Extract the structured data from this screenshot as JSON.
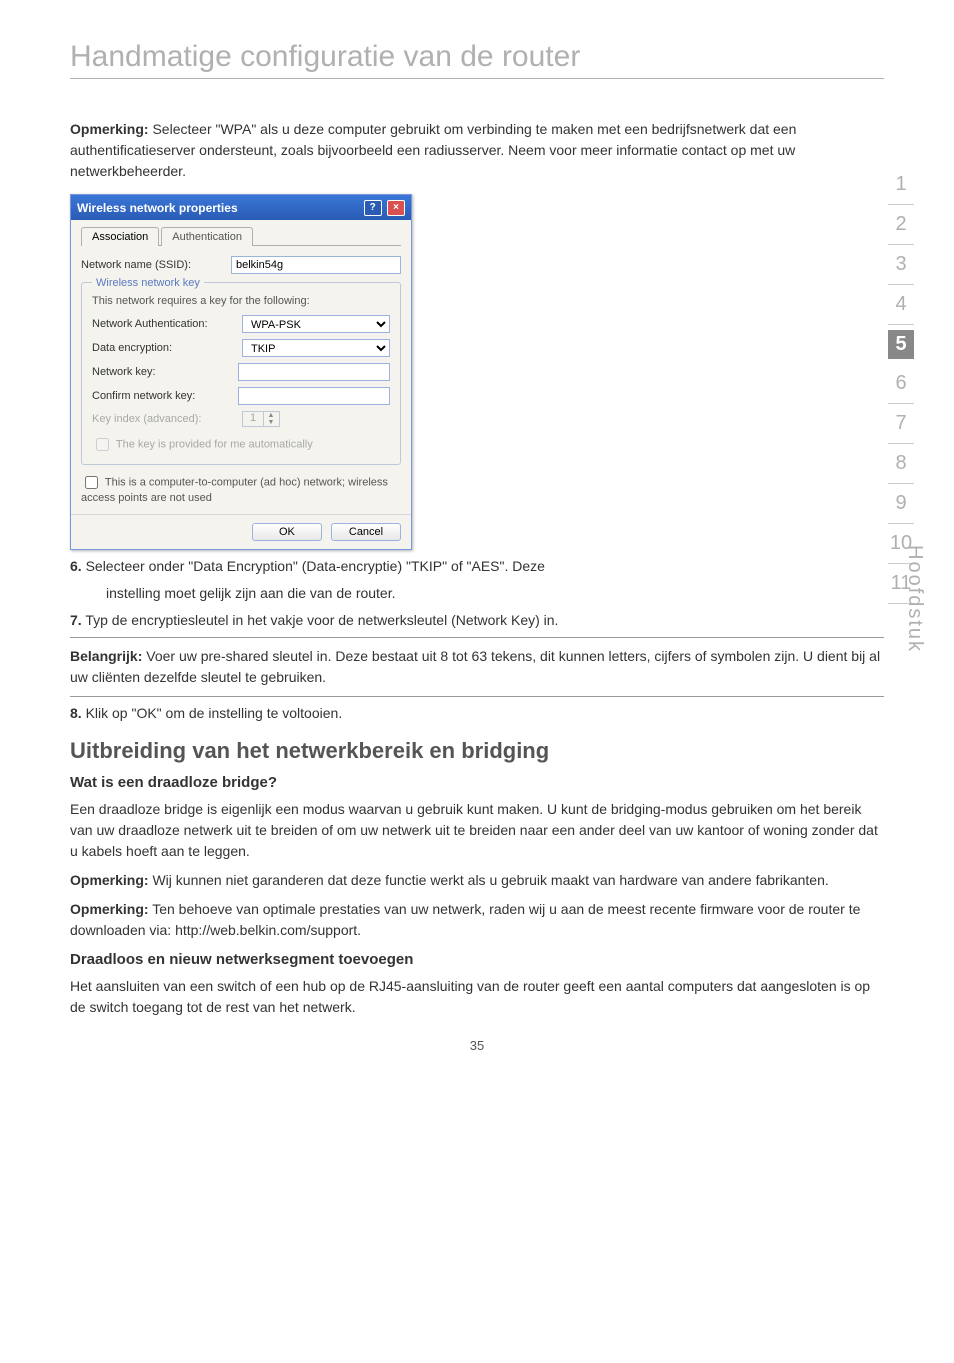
{
  "page": {
    "title": "Handmatige configuratie van de router",
    "number": "35",
    "sidebar_label": "Hoofdstuk"
  },
  "nav": {
    "items": [
      "1",
      "2",
      "3",
      "4",
      "5",
      "6",
      "7",
      "8",
      "9",
      "10",
      "11"
    ],
    "active_index": 4
  },
  "intro": {
    "label": "Opmerking:",
    "text": " Selecteer \"WPA\" als u deze computer gebruikt om verbinding te maken met een bedrijfsnetwerk dat een authentificatieserver ondersteunt, zoals bijvoorbeeld een radiusserver. Neem voor meer informatie contact op met uw netwerkbeheerder."
  },
  "dialog": {
    "title": "Wireless network properties",
    "tabs": {
      "a": "Association",
      "b": "Authentication"
    },
    "ssid_label": "Network name (SSID):",
    "ssid_value": "belkin54g",
    "fieldset_legend": "Wireless network key",
    "fieldset_text": "This network requires a key for the following:",
    "auth_label": "Network Authentication:",
    "auth_value": "WPA-PSK",
    "enc_label": "Data encryption:",
    "enc_value": "TKIP",
    "key_label": "Network key:",
    "confirm_label": "Confirm network key:",
    "keyindex_label": "Key index (advanced):",
    "keyindex_value": "1",
    "auto_key_label": "The key is provided for me automatically",
    "adhoc_label": "This is a computer-to-computer (ad hoc) network; wireless access points are not used",
    "ok": "OK",
    "cancel": "Cancel"
  },
  "steps": {
    "s6_num": "6.",
    "s6_text": " Selecteer onder \"Data Encryption\" (Data-encryptie) \"TKIP\" of \"AES\". Deze",
    "s6_cont": "instelling moet gelijk zijn aan die van de router.",
    "s7_num": "7.",
    "s7_text": " Typ de encryptiesleutel in het vakje voor de netwerksleutel (Network Key) in.",
    "s8_num": "8.",
    "s8_text": " Klik op \"OK\" om de instelling te voltooien."
  },
  "belangrijk": {
    "label": "Belangrijk:",
    "text": " Voer uw pre-shared sleutel in. Deze bestaat uit 8 tot 63 tekens, dit kunnen letters, cijfers of symbolen zijn. U dient bij al uw cliënten dezelfde sleutel te gebruiken."
  },
  "section": {
    "heading": "Uitbreiding van het netwerkbereik en bridging",
    "sub1": "Wat is een draadloze bridge?",
    "p1": "Een draadloze bridge is eigenlijk een modus waarvan u gebruik kunt maken. U kunt de bridging-modus gebruiken om het bereik van uw draadloze netwerk uit te breiden of om uw netwerk uit te breiden naar een ander deel van uw kantoor of woning zonder dat u kabels hoeft aan te leggen.",
    "n1_label": "Opmerking:",
    "n1_text": " Wij kunnen niet garanderen dat deze functie werkt als u gebruik maakt van hardware van andere fabrikanten.",
    "n2_label": "Opmerking:",
    "n2_text": " Ten behoeve van optimale prestaties van uw netwerk, raden wij u aan de meest recente firmware voor de router te downloaden via: http://web.belkin.com/support.",
    "sub2": "Draadloos en nieuw netwerksegment toevoegen",
    "p2": "Het aansluiten van een switch of een hub op de RJ45-aansluiting van de router geeft een aantal computers dat aangesloten is op de switch toegang tot de rest van het netwerk."
  }
}
